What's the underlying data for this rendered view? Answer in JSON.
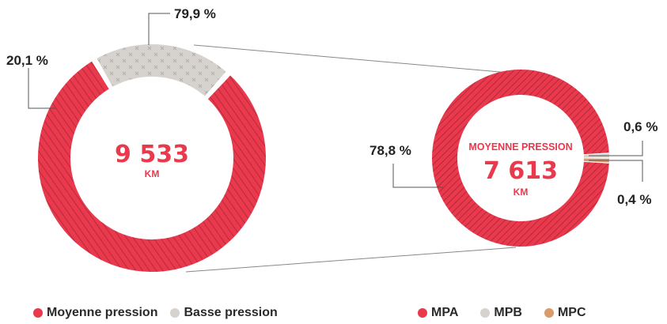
{
  "colors": {
    "red": "#e8394d",
    "hatch": "#a51f30",
    "grey": "#d6d2cd",
    "grey_pattern": "#b4aea8",
    "orange": "#d99a6c",
    "line": "#888888"
  },
  "chart_data": [
    {
      "type": "pie",
      "variant": "donut",
      "center_value": "9 533",
      "center_unit": "KM",
      "slices": [
        {
          "name": "Moyenne pression",
          "value": 79.9,
          "label": "79,9 %",
          "color": "#e8394d",
          "pattern": "hatch"
        },
        {
          "name": "Basse pression",
          "value": 20.1,
          "label": "20,1 %",
          "color": "#d6d2cd",
          "pattern": "crosses"
        }
      ],
      "legend": [
        {
          "name": "Moyenne pression",
          "color": "#e8394d"
        },
        {
          "name": "Basse pression",
          "color": "#d6d2cd"
        }
      ],
      "legend_position": "bottom"
    },
    {
      "type": "pie",
      "variant": "donut",
      "center_title": "MOYENNE PRESSION",
      "center_value": "7 613",
      "center_unit": "KM",
      "slices": [
        {
          "name": "MPA",
          "value": 78.8,
          "label": "78,8 %",
          "color": "#e8394d",
          "pattern": "hatch"
        },
        {
          "name": "MPB",
          "value": 0.6,
          "label": "0,6 %",
          "color": "#d6d2cd"
        },
        {
          "name": "MPC",
          "value": 0.4,
          "label": "0,4 %",
          "color": "#d99a6c"
        }
      ],
      "legend": [
        {
          "name": "MPA",
          "color": "#e8394d"
        },
        {
          "name": "MPB",
          "color": "#d6d2cd"
        },
        {
          "name": "MPC",
          "color": "#d99a6c"
        }
      ],
      "legend_position": "bottom"
    }
  ]
}
